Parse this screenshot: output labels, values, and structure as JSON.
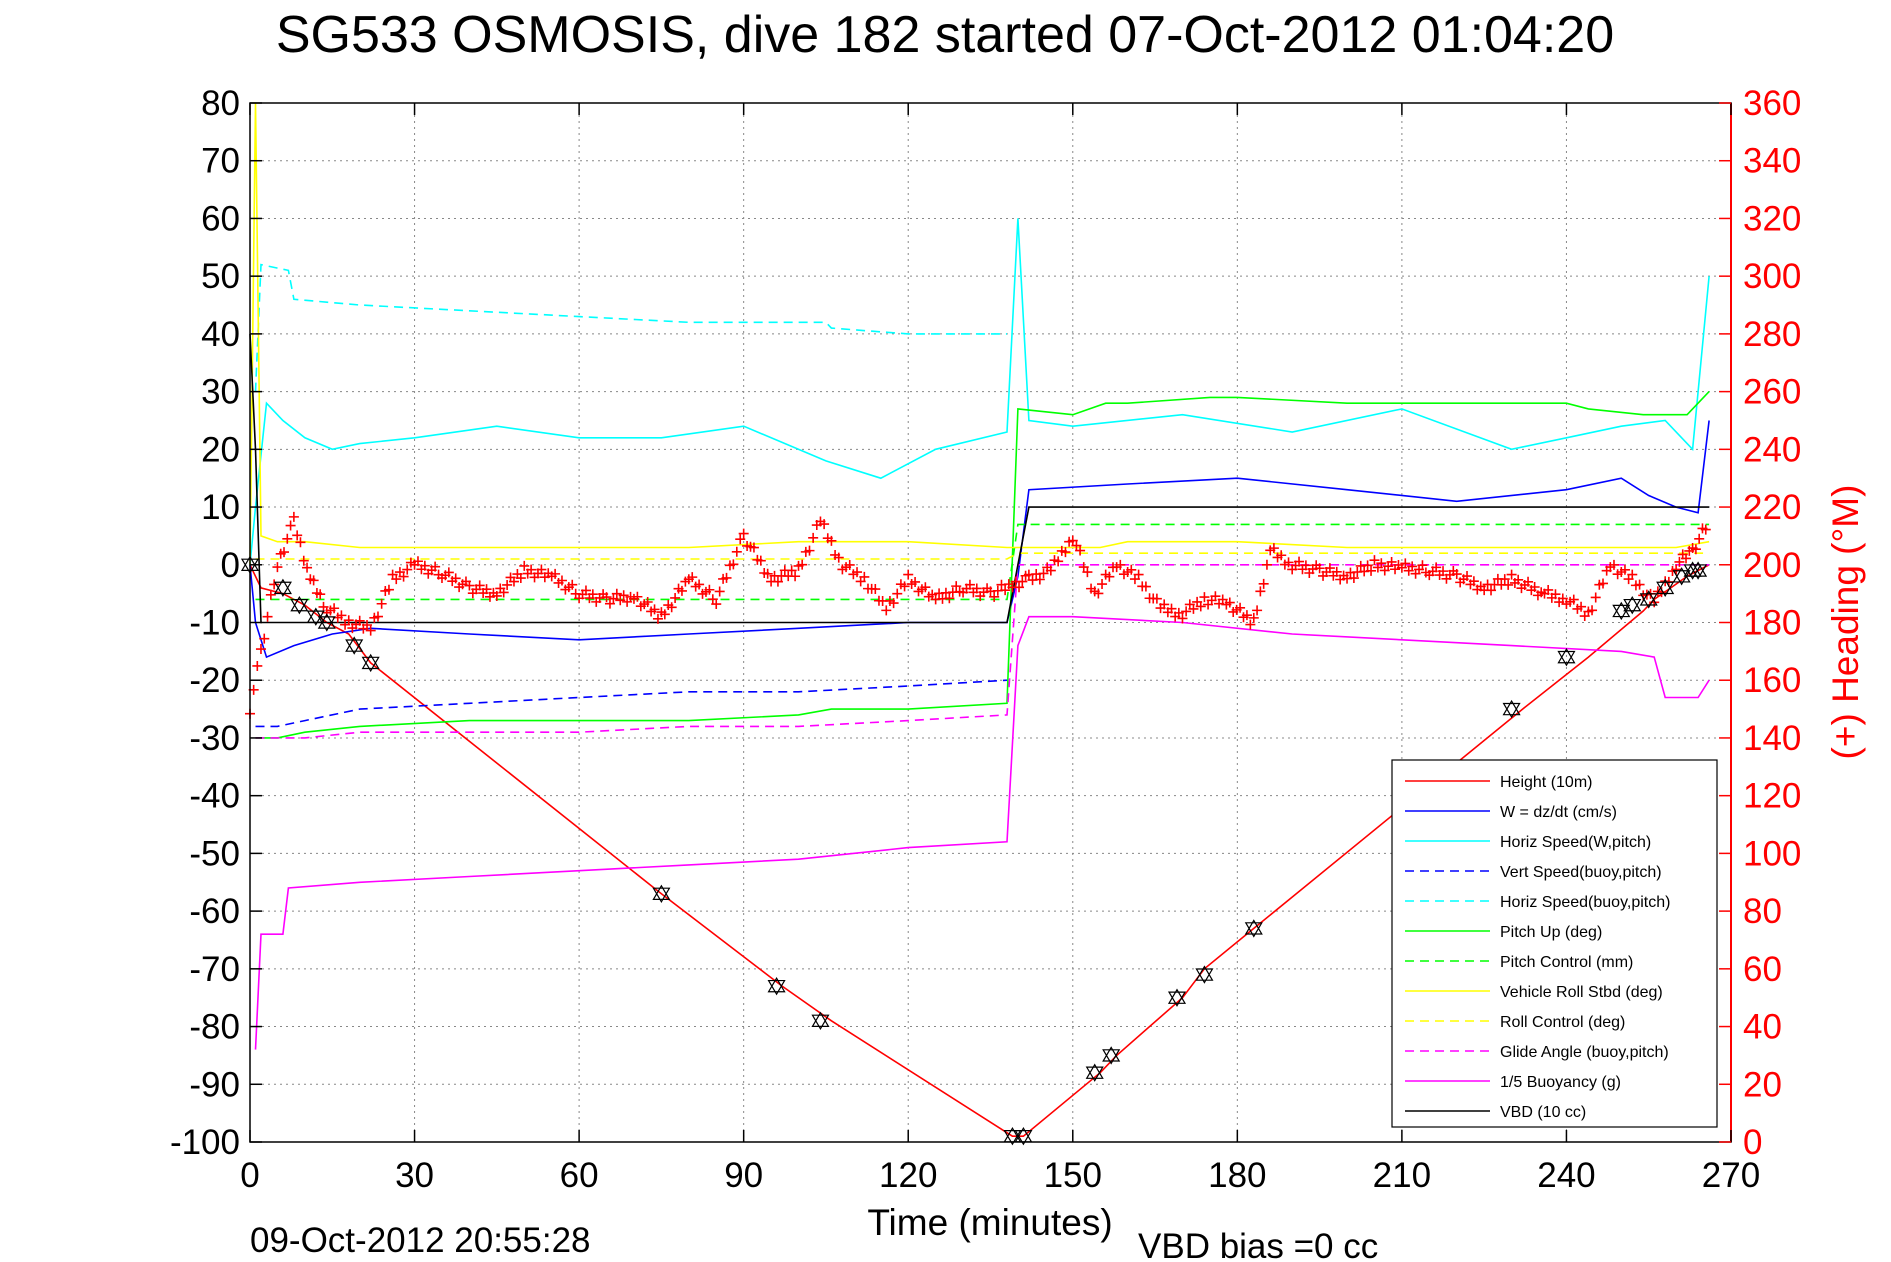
{
  "chart_data": {
    "type": "line",
    "title": "SG533 OSMOSIS, dive 182 started 07-Oct-2012 01:04:20",
    "xlabel": "Time (minutes)",
    "ylabel": "",
    "y2label": "(+) Heading (°M)",
    "xlim": [
      0,
      270
    ],
    "ylim": [
      -100,
      80
    ],
    "y2lim": [
      0,
      360
    ],
    "x_ticks": [
      "0",
      "30",
      "60",
      "90",
      "120",
      "150",
      "180",
      "210",
      "240",
      "270"
    ],
    "y_ticks": [
      "-100",
      "-90",
      "-80",
      "-70",
      "-60",
      "-50",
      "-40",
      "-30",
      "-20",
      "-10",
      "0",
      "10",
      "20",
      "30",
      "40",
      "50",
      "60",
      "70",
      "80"
    ],
    "y2_ticks": [
      "0",
      "20",
      "40",
      "60",
      "80",
      "100",
      "120",
      "140",
      "160",
      "180",
      "200",
      "220",
      "240",
      "260",
      "280",
      "300",
      "320",
      "340",
      "360"
    ],
    "grid": true,
    "legend_position": "bottom-right",
    "footer_date": "09-Oct-2012 20:55:28",
    "footer_note": "VBD bias =0 cc",
    "series": [
      {
        "name": "Height (10m)",
        "color": "#ff0000",
        "style": "solid",
        "x": [
          0,
          2,
          6,
          10,
          14,
          18,
          22,
          75,
          97,
          106,
          139,
          141,
          155,
          158,
          170,
          174,
          183,
          232,
          244,
          254,
          256,
          259,
          262,
          264,
          266
        ],
        "y": [
          0,
          -4,
          -5,
          -7,
          -10,
          -12,
          -17,
          -57,
          -73,
          -79,
          -99,
          -99,
          -88,
          -85,
          -75,
          -70,
          -63,
          -25,
          -16,
          -8,
          -6,
          -4,
          -2,
          -1,
          0
        ]
      },
      {
        "name": "W = dz/dt (cm/s)",
        "color": "#0000ff",
        "style": "solid",
        "x": [
          0,
          1,
          3,
          8,
          15,
          22,
          40,
          60,
          80,
          100,
          120,
          138,
          140,
          142,
          160,
          180,
          200,
          220,
          240,
          250,
          255,
          260,
          264,
          266
        ],
        "y": [
          0,
          -10,
          -16,
          -14,
          -12,
          -11,
          -12,
          -13,
          -12,
          -11,
          -10,
          -10,
          -2,
          13,
          14,
          15,
          13,
          11,
          13,
          15,
          12,
          10,
          9,
          25
        ]
      },
      {
        "name": "Horiz Speed(W,pitch)",
        "color": "#00ffff",
        "style": "solid",
        "x": [
          0,
          1,
          3,
          6,
          10,
          15,
          20,
          30,
          45,
          60,
          75,
          90,
          105,
          115,
          125,
          138,
          140,
          142,
          150,
          170,
          190,
          210,
          230,
          240,
          250,
          258,
          263,
          266
        ],
        "y": [
          0,
          10,
          28,
          25,
          22,
          20,
          21,
          22,
          24,
          22,
          22,
          24,
          18,
          15,
          20,
          23,
          60,
          25,
          24,
          26,
          23,
          27,
          20,
          22,
          24,
          25,
          20,
          50
        ]
      },
      {
        "name": "Vert Speed(buoy,pitch)",
        "color": "#0000ff",
        "style": "dashed",
        "x": [
          1,
          5,
          10,
          20,
          40,
          60,
          80,
          100,
          120,
          138
        ],
        "y": [
          -28,
          -28,
          -27,
          -25,
          -24,
          -23,
          -22,
          -22,
          -21,
          -20
        ]
      },
      {
        "name": "Horiz Speed(buoy,pitch)",
        "color": "#00ffff",
        "style": "dashed",
        "x": [
          1,
          2,
          7,
          8,
          20,
          40,
          60,
          80,
          100,
          105,
          106,
          120,
          138
        ],
        "y": [
          30,
          52,
          51,
          46,
          45,
          44,
          43,
          42,
          42,
          42,
          41,
          40,
          40
        ]
      },
      {
        "name": "Pitch Up (deg)",
        "color": "#00ff00",
        "style": "solid",
        "x": [
          1,
          5,
          10,
          20,
          40,
          60,
          80,
          100,
          106,
          120,
          138,
          140,
          150,
          156,
          160,
          175,
          180,
          200,
          220,
          240,
          244,
          254,
          258,
          262,
          266
        ],
        "y": [
          -30,
          -30,
          -29,
          -28,
          -27,
          -27,
          -27,
          -26,
          -25,
          -25,
          -24,
          27,
          26,
          28,
          28,
          29,
          29,
          28,
          28,
          28,
          27,
          26,
          26,
          26,
          30
        ]
      },
      {
        "name": "Pitch Control (mm)",
        "color": "#00ff00",
        "style": "dashed",
        "x": [
          1,
          5,
          10,
          40,
          80,
          120,
          138,
          140,
          180,
          220,
          260,
          266
        ],
        "y": [
          -6,
          -6,
          -6,
          -6,
          -6,
          -6,
          -6,
          7,
          7,
          7,
          7,
          7
        ]
      },
      {
        "name": "Vehicle Roll Stbd (deg)",
        "color": "#ffff00",
        "style": "solid",
        "x": [
          0,
          1,
          2,
          5,
          10,
          20,
          40,
          60,
          80,
          100,
          120,
          138,
          140,
          155,
          160,
          180,
          200,
          220,
          240,
          260,
          266
        ],
        "y": [
          0,
          80,
          5,
          4,
          4,
          3,
          3,
          3,
          3,
          4,
          4,
          3,
          3,
          3,
          4,
          4,
          3,
          3,
          3,
          3,
          4
        ]
      },
      {
        "name": "Roll Control (deg)",
        "color": "#ffff00",
        "style": "dashed",
        "x": [
          1,
          5,
          10,
          40,
          80,
          120,
          138,
          140,
          180,
          220,
          260,
          266
        ],
        "y": [
          1,
          1,
          1,
          1,
          1,
          1,
          1,
          2,
          2,
          2,
          2,
          2
        ]
      },
      {
        "name": "Glide Angle (buoy,pitch)",
        "color": "#ff00ff",
        "style": "dashed",
        "x": [
          1,
          5,
          10,
          20,
          40,
          60,
          80,
          100,
          120,
          138,
          140,
          180,
          220,
          260,
          266
        ],
        "y": [
          -30,
          -30,
          -30,
          -29,
          -29,
          -29,
          -28,
          -28,
          -27,
          -26,
          0,
          0,
          0,
          0,
          0
        ]
      },
      {
        "name": "1/5 Buoyancy (g)",
        "color": "#ff00ff",
        "style": "solid",
        "x": [
          1,
          2,
          6,
          7,
          20,
          40,
          60,
          80,
          100,
          120,
          138,
          140,
          142,
          150,
          170,
          190,
          210,
          230,
          250,
          256,
          258,
          264,
          266
        ],
        "y": [
          -84,
          -64,
          -64,
          -56,
          -55,
          -54,
          -53,
          -52,
          -51,
          -49,
          -48,
          -14,
          -9,
          -9,
          -10,
          -12,
          -13,
          -14,
          -15,
          -16,
          -23,
          -23,
          -20
        ]
      },
      {
        "name": "VBD (10 cc)",
        "color": "#000000",
        "style": "solid",
        "x": [
          0,
          1,
          2,
          138,
          140,
          142,
          266
        ],
        "y": [
          40,
          20,
          -10,
          -10,
          0,
          10,
          10
        ]
      }
    ],
    "heading": {
      "name": "(+) Heading (°M)",
      "color": "#ff0000",
      "marker": "+",
      "x": [
        0,
        2,
        5,
        8,
        11,
        14,
        18,
        22,
        26,
        30,
        35,
        40,
        45,
        50,
        55,
        60,
        65,
        70,
        75,
        80,
        85,
        90,
        95,
        100,
        104,
        108,
        112,
        116,
        120,
        125,
        130,
        135,
        139,
        142,
        146,
        150,
        154,
        158,
        162,
        166,
        170,
        174,
        178,
        183,
        186,
        190,
        195,
        200,
        205,
        210,
        215,
        220,
        225,
        230,
        236,
        240,
        244,
        248,
        252,
        256,
        260,
        263,
        266
      ],
      "y": [
        150,
        170,
        200,
        215,
        195,
        185,
        180,
        178,
        195,
        200,
        197,
        192,
        190,
        198,
        196,
        190,
        188,
        189,
        182,
        195,
        188,
        210,
        195,
        198,
        215,
        200,
        195,
        185,
        195,
        188,
        192,
        190,
        193,
        195,
        198,
        210,
        190,
        200,
        195,
        185,
        183,
        188,
        187,
        180,
        205,
        200,
        198,
        196,
        200,
        199,
        198,
        196,
        192,
        195,
        190,
        188,
        183,
        200,
        195,
        187,
        200,
        205,
        215
      ]
    },
    "markers": {
      "shape": "triangles",
      "x": [
        0,
        6,
        9,
        12,
        14,
        19,
        22,
        75,
        96,
        104,
        139,
        141,
        154,
        157,
        169,
        174,
        183,
        230,
        240,
        250,
        252,
        255,
        258,
        261,
        263,
        264
      ],
      "y": [
        0,
        -4,
        -7,
        -9,
        -10,
        -14,
        -17,
        -57,
        -73,
        -79,
        -99,
        -99,
        -88,
        -85,
        -75,
        -71,
        -63,
        -25,
        -16,
        -8,
        -7,
        -6,
        -4,
        -2,
        -1,
        -1
      ]
    }
  }
}
